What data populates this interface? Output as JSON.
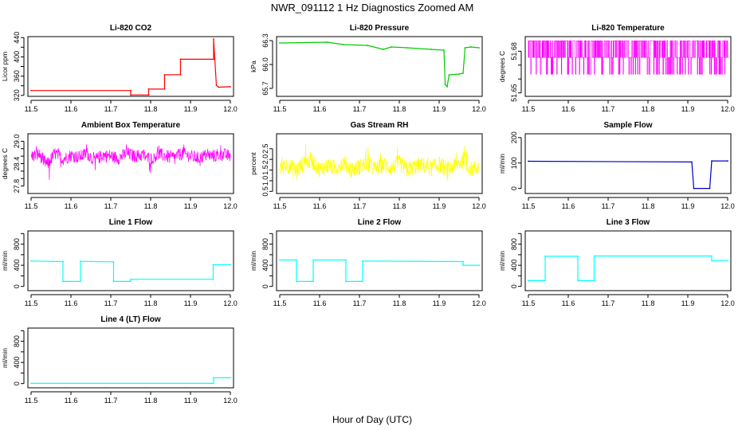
{
  "figure": {
    "title": "NWR_091112  1 Hz Diagnostics Zoomed AM",
    "xlabel": "Hour of Day (UTC)"
  },
  "chart_data": [
    {
      "id": "co2",
      "type": "line",
      "title": "Li-820 CO2",
      "ylabel": "Licor ppm",
      "color": "#ff0000",
      "xlim": [
        11.5,
        12.0
      ],
      "ylim": [
        318,
        442
      ],
      "yticks": [
        320,
        340,
        360,
        380,
        400,
        420,
        440
      ],
      "yticklabels": [
        "320",
        "",
        "360",
        "",
        "400",
        "",
        "440"
      ],
      "xticks": [
        11.5,
        11.6,
        11.7,
        11.8,
        11.9,
        12.0
      ],
      "xticklabels": [
        "11.5",
        "11.6",
        "11.7",
        "11.8",
        "11.9",
        "12.0"
      ],
      "x": [
        11.5,
        11.75,
        11.75,
        11.795,
        11.795,
        11.835,
        11.835,
        11.875,
        11.875,
        11.958,
        11.958,
        11.965,
        11.97,
        12.0
      ],
      "y": [
        330,
        330,
        321,
        321,
        333,
        333,
        363,
        363,
        395,
        395,
        437,
        341,
        337,
        338
      ]
    },
    {
      "id": "pressure",
      "type": "line",
      "title": "Li-820 Pressure",
      "ylabel": "kPa",
      "color": "#00cc00",
      "xlim": [
        11.5,
        12.0
      ],
      "ylim": [
        65.6,
        66.35
      ],
      "yticks": [
        65.7,
        66.0,
        66.3
      ],
      "yticklabels": [
        "65.7",
        "66.0",
        "66.3"
      ],
      "xticks": [
        11.5,
        11.6,
        11.7,
        11.8,
        11.9,
        12.0
      ],
      "xticklabels": [
        "11.5",
        "11.6",
        "11.7",
        "11.8",
        "11.9",
        "12.0"
      ],
      "x": [
        11.5,
        11.62,
        11.66,
        11.72,
        11.76,
        11.78,
        11.82,
        11.88,
        11.912,
        11.915,
        11.92,
        11.925,
        11.95,
        11.96,
        11.965,
        11.98,
        12.0
      ],
      "y": [
        66.27,
        66.28,
        66.25,
        66.24,
        66.19,
        66.22,
        66.21,
        66.19,
        66.18,
        65.75,
        65.72,
        65.87,
        65.88,
        65.89,
        66.21,
        66.22,
        66.21
      ]
    },
    {
      "id": "temperature",
      "type": "line",
      "title": "Li-820 Temperature",
      "ylabel": "degrees C",
      "color": "#ff00ff",
      "xlim": [
        11.5,
        12.0
      ],
      "ylim": [
        51.6475,
        51.6905
      ],
      "yticks": [
        51.65,
        51.66,
        51.67,
        51.68
      ],
      "yticklabels": [
        "51.65",
        "",
        "",
        "51.68"
      ],
      "xticks": [
        11.5,
        11.6,
        11.7,
        11.8,
        11.9,
        12.0
      ],
      "xticklabels": [
        "11.5",
        "11.6",
        "11.7",
        "11.8",
        "11.9",
        "12.0"
      ],
      "levels": [
        51.6635,
        51.6755,
        51.6875
      ],
      "x": [
        11.5,
        11.51,
        11.52,
        11.53,
        11.54,
        11.55,
        11.56,
        11.57,
        11.58,
        11.59,
        11.6,
        11.61,
        11.62,
        11.63,
        11.64,
        11.65,
        11.66,
        11.67,
        11.68,
        11.69,
        11.7,
        11.71,
        11.72,
        11.73,
        11.74,
        11.75,
        11.76,
        11.77,
        11.78,
        11.79,
        11.8,
        11.81,
        11.82,
        11.83,
        11.84,
        11.85,
        11.86,
        11.87,
        11.88,
        11.89,
        11.9,
        11.91,
        11.92,
        11.93,
        11.94,
        11.95,
        11.96,
        11.97,
        11.98,
        11.99,
        12.0
      ],
      "y": [
        51.6755,
        51.6635,
        51.6755,
        51.6875,
        51.6755,
        51.6635,
        51.6875,
        51.6755,
        51.6635,
        51.6755,
        51.6875,
        51.6755,
        51.6635,
        51.6755,
        51.6875,
        51.6755,
        51.6635,
        51.6755,
        51.6875,
        51.6755,
        51.6635,
        51.6875,
        51.6755,
        51.6635,
        51.6755,
        51.6875,
        51.6755,
        51.6635,
        51.6755,
        51.6875,
        51.6755,
        51.6635,
        51.6755,
        51.6875,
        51.6755,
        51.6635,
        51.6875,
        51.6755,
        51.6635,
        51.6755,
        51.6875,
        51.6755,
        51.6635,
        51.6755,
        51.6875,
        51.6755,
        51.6635,
        51.6755,
        51.6875,
        51.6755,
        51.6635
      ]
    },
    {
      "id": "ambient",
      "type": "line",
      "title": "Ambient Box Temperature",
      "ylabel": "degrees C",
      "color": "#ff00ff",
      "xlim": [
        11.5,
        12.0
      ],
      "ylim": [
        27.6,
        29.2
      ],
      "yticks": [
        27.8,
        28.0,
        28.2,
        28.4,
        28.6,
        28.8,
        29.0
      ],
      "yticklabels": [
        "27.8",
        "",
        "",
        "28.4",
        "",
        "",
        "29.0"
      ],
      "xticks": [
        11.5,
        11.6,
        11.7,
        11.8,
        11.9,
        12.0
      ],
      "xticklabels": [
        "11.5",
        "11.6",
        "11.7",
        "11.8",
        "11.9",
        "12.0"
      ],
      "x": [
        11.5,
        11.52,
        11.54,
        11.56,
        11.58,
        11.6,
        11.62,
        11.64,
        11.66,
        11.68,
        11.7,
        11.72,
        11.74,
        11.76,
        11.78,
        11.8,
        11.82,
        11.84,
        11.86,
        11.88,
        11.9,
        11.92,
        11.94,
        11.96,
        11.98,
        12.0
      ],
      "y": [
        28.6,
        28.8,
        27.7,
        28.9,
        28.3,
        28.7,
        28.5,
        28.9,
        28.2,
        28.7,
        28.6,
        28.4,
        28.9,
        28.6,
        28.7,
        28.3,
        28.8,
        28.6,
        28.5,
        28.9,
        28.6,
        28.4,
        28.7,
        28.6,
        28.8,
        28.6
      ]
    },
    {
      "id": "rh",
      "type": "line",
      "title": "Gas Stream RH",
      "ylabel": "percent",
      "color": "#ffff00",
      "xlim": [
        11.5,
        12.0
      ],
      "ylim": [
        0.4,
        3.2
      ],
      "yticks": [
        0.5,
        1.0,
        1.5,
        2.0,
        2.5
      ],
      "yticklabels": [
        "0.5",
        "1.0",
        "1.5",
        "2.0",
        "2.5"
      ],
      "xticks": [
        11.5,
        11.6,
        11.7,
        11.8,
        11.9,
        12.0
      ],
      "xticklabels": [
        "11.5",
        "11.6",
        "11.7",
        "11.8",
        "11.9",
        "12.0"
      ],
      "x": [
        11.5,
        11.52,
        11.54,
        11.56,
        11.58,
        11.6,
        11.62,
        11.64,
        11.66,
        11.68,
        11.7,
        11.72,
        11.74,
        11.76,
        11.78,
        11.8,
        11.82,
        11.84,
        11.86,
        11.88,
        11.9,
        11.92,
        11.94,
        11.96,
        11.98,
        12.0
      ],
      "y": [
        1.6,
        2.2,
        1.1,
        2.4,
        3.1,
        1.3,
        2.0,
        1.5,
        2.6,
        1.2,
        1.8,
        2.3,
        1.4,
        2.2,
        1.6,
        2.5,
        1.3,
        1.9,
        2.1,
        1.5,
        2.3,
        1.2,
        2.0,
        2.9,
        1.4,
        1.7
      ]
    },
    {
      "id": "sample_flow",
      "type": "line",
      "title": "Sample Flow",
      "ylabel": "ml/min",
      "color": "#0000cc",
      "xlim": [
        11.5,
        12.0
      ],
      "ylim": [
        -20,
        215
      ],
      "yticks": [
        0,
        100,
        200
      ],
      "yticklabels": [
        "0",
        "100",
        "200"
      ],
      "xticks": [
        11.5,
        11.6,
        11.7,
        11.8,
        11.9,
        12.0
      ],
      "xticklabels": [
        "11.5",
        "11.6",
        "11.7",
        "11.8",
        "11.9",
        "12.0"
      ],
      "x": [
        11.5,
        11.91,
        11.915,
        11.955,
        11.96,
        12.0
      ],
      "y": [
        107,
        104,
        0,
        0,
        108,
        108
      ]
    },
    {
      "id": "line1",
      "type": "line",
      "title": "Line 1 Flow",
      "ylabel": "ml/min",
      "color": "#00ffff",
      "xlim": [
        11.5,
        12.0
      ],
      "ylim": [
        -80,
        1050
      ],
      "yticks": [
        0,
        200,
        400,
        600,
        800,
        1000
      ],
      "yticklabels": [
        "0",
        "",
        "400",
        "",
        "800",
        ""
      ],
      "xticks": [
        11.5,
        11.6,
        11.7,
        11.8,
        11.9,
        12.0
      ],
      "xticklabels": [
        "11.5",
        "11.6",
        "11.7",
        "11.8",
        "11.9",
        "12.0"
      ],
      "x": [
        11.5,
        11.58,
        11.58,
        11.624,
        11.624,
        11.707,
        11.707,
        11.75,
        11.75,
        11.957,
        11.957,
        12.0
      ],
      "y": [
        480,
        470,
        95,
        95,
        475,
        465,
        95,
        95,
        135,
        135,
        410,
        410
      ]
    },
    {
      "id": "line2",
      "type": "line",
      "title": "Line 2 Flow",
      "ylabel": "ml/min",
      "color": "#00ffff",
      "xlim": [
        11.5,
        12.0
      ],
      "ylim": [
        -80,
        1050
      ],
      "yticks": [
        0,
        200,
        400,
        600,
        800,
        1000
      ],
      "yticklabels": [
        "0",
        "",
        "400",
        "",
        "800",
        ""
      ],
      "xticks": [
        11.5,
        11.6,
        11.7,
        11.8,
        11.9,
        12.0
      ],
      "xticklabels": [
        "11.5",
        "11.6",
        "11.7",
        "11.8",
        "11.9",
        "12.0"
      ],
      "x": [
        11.5,
        11.542,
        11.542,
        11.584,
        11.584,
        11.666,
        11.666,
        11.708,
        11.708,
        11.96,
        11.96,
        12.0
      ],
      "y": [
        500,
        500,
        95,
        95,
        500,
        500,
        95,
        95,
        480,
        470,
        400,
        400
      ]
    },
    {
      "id": "line3",
      "type": "line",
      "title": "Line 3 Flow",
      "ylabel": "ml/min",
      "color": "#00ffff",
      "xlim": [
        11.5,
        12.0
      ],
      "ylim": [
        -80,
        1050
      ],
      "yticks": [
        0,
        200,
        400,
        600,
        800,
        1000
      ],
      "yticklabels": [
        "0",
        "",
        "400",
        "",
        "800",
        ""
      ],
      "xticks": [
        11.5,
        11.6,
        11.7,
        11.8,
        11.9,
        12.0
      ],
      "xticklabels": [
        "11.5",
        "11.6",
        "11.7",
        "11.8",
        "11.9",
        "12.0"
      ],
      "x": [
        11.5,
        11.542,
        11.542,
        11.624,
        11.624,
        11.665,
        11.665,
        11.96,
        11.96,
        12.0
      ],
      "y": [
        110,
        110,
        570,
        570,
        110,
        110,
        575,
        575,
        490,
        490
      ]
    },
    {
      "id": "line4",
      "type": "line",
      "title": "Line 4 (LT) Flow",
      "ylabel": "ml/min",
      "color": "#00ffff",
      "xlim": [
        11.5,
        12.0
      ],
      "ylim": [
        -80,
        1050
      ],
      "yticks": [
        0,
        200,
        400,
        600,
        800,
        1000
      ],
      "yticklabels": [
        "0",
        "",
        "400",
        "",
        "800",
        ""
      ],
      "xticks": [
        11.5,
        11.6,
        11.7,
        11.8,
        11.9,
        12.0
      ],
      "xticklabels": [
        "11.5",
        "11.6",
        "11.7",
        "11.8",
        "11.9",
        "12.0"
      ],
      "x": [
        11.5,
        11.958,
        11.958,
        12.0
      ],
      "y": [
        5,
        5,
        110,
        110
      ]
    }
  ]
}
